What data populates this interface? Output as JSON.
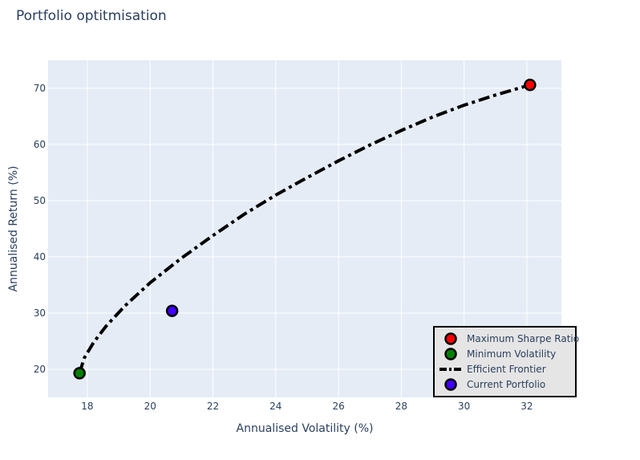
{
  "chart_data": {
    "type": "scatter",
    "title": "Portfolio optitmisation",
    "xlabel": "Annualised Volatility (%)",
    "ylabel": "Annualised Return (%)",
    "xlim": [
      16.75,
      33.1
    ],
    "ylim": [
      15,
      75
    ],
    "xticks": [
      18,
      20,
      22,
      24,
      26,
      28,
      30,
      32
    ],
    "yticks": [
      20,
      30,
      40,
      50,
      60,
      70
    ],
    "grid": true,
    "legend_position": "bottom-right",
    "colors": {
      "plot_bg": "#e5ecf6",
      "grid": "#ffffff",
      "text": "#2a3f5f",
      "legend_bg": "#e5e5e5",
      "legend_border": "#000000"
    },
    "series": [
      {
        "name": "Maximum Sharpe Ratio",
        "kind": "marker",
        "color": "#ff0000",
        "x": [
          32.1
        ],
        "y": [
          70.6
        ]
      },
      {
        "name": "Minimum Volatility",
        "kind": "marker",
        "color": "#008000",
        "x": [
          17.75
        ],
        "y": [
          19.3
        ]
      },
      {
        "name": "Efficient Frontier",
        "kind": "line",
        "dash": "dashdot",
        "color": "#000000",
        "x": [
          17.75,
          17.9,
          18.2,
          18.6,
          19.2,
          20.0,
          21.0,
          22.0,
          23.0,
          24.0,
          25.0,
          26.0,
          27.0,
          28.0,
          29.0,
          30.0,
          31.0,
          32.1
        ],
        "y": [
          19.3,
          22.0,
          24.8,
          27.7,
          31.3,
          35.4,
          39.8,
          43.8,
          47.6,
          51.0,
          54.1,
          57.1,
          59.9,
          62.5,
          64.9,
          67.0,
          68.8,
          70.6
        ]
      },
      {
        "name": "Current Portfolio",
        "kind": "marker",
        "color": "#4000ff",
        "x": [
          20.7
        ],
        "y": [
          30.4
        ]
      }
    ]
  }
}
